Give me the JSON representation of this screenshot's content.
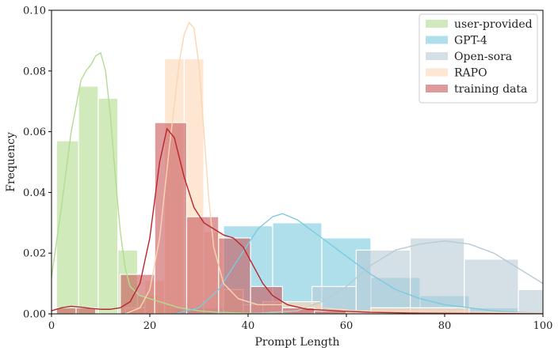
{
  "chart_data": {
    "type": "bar",
    "xlabel": "Prompt Length",
    "ylabel": "Frequency",
    "xlim": [
      0,
      100
    ],
    "ylim": [
      0,
      0.1
    ],
    "xticks": [
      0,
      20,
      40,
      60,
      80,
      100
    ],
    "yticks": [
      0.0,
      0.02,
      0.04,
      0.06,
      0.08,
      0.1
    ],
    "ytick_labels": [
      "0.00",
      "0.02",
      "0.04",
      "0.06",
      "0.08",
      "0.10"
    ],
    "legend_position": "top-right",
    "grid": false,
    "series": [
      {
        "name": "user-provided",
        "color": "#b2dc8f",
        "bins": [
          {
            "x0": 1,
            "x1": 5.5,
            "y": 0.057
          },
          {
            "x0": 5.5,
            "x1": 9.5,
            "y": 0.075
          },
          {
            "x0": 9.5,
            "x1": 13.5,
            "y": 0.071
          },
          {
            "x0": 13.5,
            "x1": 17.5,
            "y": 0.021
          },
          {
            "x0": 17.5,
            "x1": 21.5,
            "y": 0.006
          },
          {
            "x0": 21.5,
            "x1": 25.5,
            "y": 0.003
          },
          {
            "x0": 25.5,
            "x1": 29.5,
            "y": 0.001
          }
        ],
        "kde": [
          [
            0,
            0.012
          ],
          [
            2,
            0.035
          ],
          [
            4,
            0.06
          ],
          [
            6,
            0.077
          ],
          [
            7,
            0.08
          ],
          [
            8,
            0.082
          ],
          [
            9,
            0.085
          ],
          [
            10,
            0.086
          ],
          [
            11,
            0.08
          ],
          [
            12,
            0.065
          ],
          [
            13,
            0.045
          ],
          [
            14,
            0.027
          ],
          [
            15,
            0.015
          ],
          [
            16,
            0.009
          ],
          [
            18,
            0.006
          ],
          [
            20,
            0.005
          ],
          [
            22,
            0.004
          ],
          [
            24,
            0.003
          ],
          [
            26,
            0.002
          ],
          [
            28,
            0.0015
          ],
          [
            30,
            0.001
          ],
          [
            34,
            0.0005
          ],
          [
            40,
            0.0002
          ],
          [
            50,
            0.0
          ]
        ]
      },
      {
        "name": "GPT-4",
        "color": "#7ccae0",
        "bins": [
          {
            "x0": 25,
            "x1": 35,
            "y": 0.002
          },
          {
            "x0": 35,
            "x1": 45,
            "y": 0.029
          },
          {
            "x0": 45,
            "x1": 55,
            "y": 0.03
          },
          {
            "x0": 55,
            "x1": 65,
            "y": 0.025
          },
          {
            "x0": 65,
            "x1": 75,
            "y": 0.012
          },
          {
            "x0": 75,
            "x1": 85,
            "y": 0.006
          },
          {
            "x0": 85,
            "x1": 95,
            "y": 0.002
          }
        ],
        "kde": [
          [
            25,
            0.0
          ],
          [
            30,
            0.002
          ],
          [
            34,
            0.008
          ],
          [
            38,
            0.018
          ],
          [
            42,
            0.028
          ],
          [
            45,
            0.032
          ],
          [
            47,
            0.033
          ],
          [
            50,
            0.031
          ],
          [
            55,
            0.025
          ],
          [
            60,
            0.019
          ],
          [
            65,
            0.013
          ],
          [
            70,
            0.008
          ],
          [
            75,
            0.005
          ],
          [
            80,
            0.003
          ],
          [
            85,
            0.002
          ],
          [
            90,
            0.001
          ],
          [
            95,
            0.0005
          ],
          [
            100,
            0.0002
          ]
        ]
      },
      {
        "name": "Open-sora",
        "color": "#b8cbd6",
        "bins": [
          {
            "x0": 53,
            "x1": 62,
            "y": 0.009
          },
          {
            "x0": 62,
            "x1": 73,
            "y": 0.021
          },
          {
            "x0": 73,
            "x1": 84,
            "y": 0.025
          },
          {
            "x0": 84,
            "x1": 95,
            "y": 0.018
          },
          {
            "x0": 95,
            "x1": 100,
            "y": 0.008
          }
        ],
        "kde": [
          [
            40,
            0.0
          ],
          [
            50,
            0.001
          ],
          [
            55,
            0.004
          ],
          [
            60,
            0.009
          ],
          [
            65,
            0.016
          ],
          [
            70,
            0.021
          ],
          [
            75,
            0.023
          ],
          [
            80,
            0.024
          ],
          [
            85,
            0.023
          ],
          [
            90,
            0.02
          ],
          [
            95,
            0.015
          ],
          [
            100,
            0.01
          ]
        ]
      },
      {
        "name": "RAPO",
        "color": "#fbd6b4",
        "bins": [
          {
            "x0": 15,
            "x1": 19,
            "y": 0.002
          },
          {
            "x0": 19,
            "x1": 23,
            "y": 0.011
          },
          {
            "x0": 23,
            "x1": 27,
            "y": 0.084
          },
          {
            "x0": 27,
            "x1": 31,
            "y": 0.084
          },
          {
            "x0": 31,
            "x1": 35,
            "y": 0.027
          },
          {
            "x0": 35,
            "x1": 39,
            "y": 0.008
          },
          {
            "x0": 39,
            "x1": 43,
            "y": 0.003
          },
          {
            "x0": 43,
            "x1": 55,
            "y": 0.004
          },
          {
            "x0": 55,
            "x1": 65,
            "y": 0.001
          },
          {
            "x0": 65,
            "x1": 85,
            "y": 0.002
          }
        ],
        "kde": [
          [
            15,
            0.0
          ],
          [
            18,
            0.002
          ],
          [
            20,
            0.008
          ],
          [
            22,
            0.025
          ],
          [
            24,
            0.055
          ],
          [
            26,
            0.083
          ],
          [
            27,
            0.092
          ],
          [
            28,
            0.096
          ],
          [
            29,
            0.094
          ],
          [
            30,
            0.082
          ],
          [
            31,
            0.06
          ],
          [
            32,
            0.038
          ],
          [
            33,
            0.022
          ],
          [
            35,
            0.01
          ],
          [
            38,
            0.005
          ],
          [
            42,
            0.003
          ],
          [
            48,
            0.003
          ],
          [
            55,
            0.002
          ],
          [
            62,
            0.001
          ],
          [
            70,
            0.001
          ],
          [
            80,
            0.001
          ],
          [
            90,
            0.0005
          ],
          [
            100,
            0.0002
          ]
        ]
      },
      {
        "name": "training data",
        "color": "#c9585a",
        "bins": [
          {
            "x0": 1,
            "x1": 5,
            "y": 0.002
          },
          {
            "x0": 5,
            "x1": 9,
            "y": 0.002
          },
          {
            "x0": 14,
            "x1": 21,
            "y": 0.013
          },
          {
            "x0": 21,
            "x1": 27.5,
            "y": 0.063
          },
          {
            "x0": 27.5,
            "x1": 34,
            "y": 0.032
          },
          {
            "x0": 34,
            "x1": 40.5,
            "y": 0.025
          },
          {
            "x0": 40.5,
            "x1": 47,
            "y": 0.009
          },
          {
            "x0": 47,
            "x1": 53.5,
            "y": 0.002
          },
          {
            "x0": 53.5,
            "x1": 60,
            "y": 0.001
          }
        ],
        "line_color": "#b8262c",
        "kde": [
          [
            0,
            0.001
          ],
          [
            2,
            0.002
          ],
          [
            4,
            0.0025
          ],
          [
            6,
            0.0022
          ],
          [
            8,
            0.0018
          ],
          [
            10,
            0.0015
          ],
          [
            12,
            0.0015
          ],
          [
            14,
            0.002
          ],
          [
            16,
            0.004
          ],
          [
            18,
            0.01
          ],
          [
            20,
            0.025
          ],
          [
            22,
            0.05
          ],
          [
            23.5,
            0.061
          ],
          [
            25,
            0.058
          ],
          [
            27,
            0.045
          ],
          [
            29,
            0.035
          ],
          [
            31,
            0.03
          ],
          [
            33,
            0.028
          ],
          [
            35,
            0.026
          ],
          [
            37,
            0.025
          ],
          [
            39,
            0.022
          ],
          [
            41,
            0.016
          ],
          [
            43,
            0.01
          ],
          [
            45,
            0.006
          ],
          [
            48,
            0.003
          ],
          [
            52,
            0.0015
          ],
          [
            58,
            0.001
          ],
          [
            65,
            0.0005
          ],
          [
            75,
            0.0002
          ],
          [
            100,
            0.0
          ]
        ]
      }
    ]
  }
}
